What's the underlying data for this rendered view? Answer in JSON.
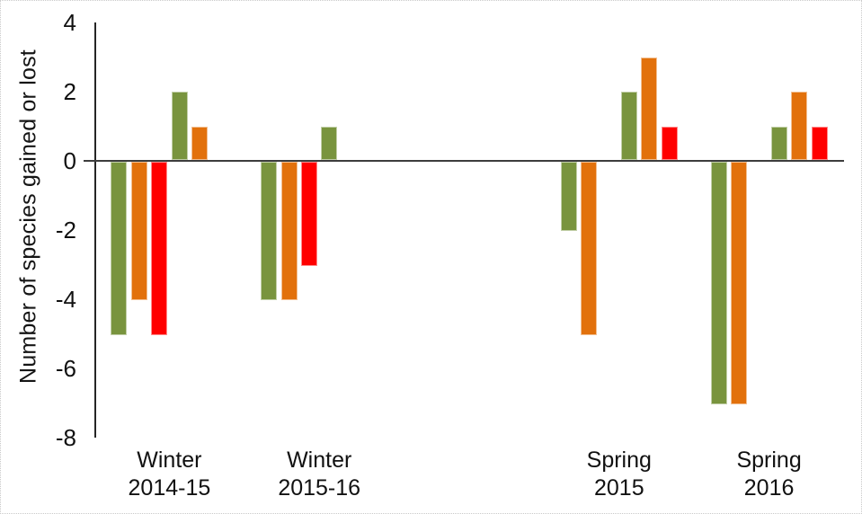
{
  "chart_data": {
    "type": "bar",
    "title": "",
    "ylabel": "Number of species gained or lost",
    "xlabel": "",
    "ylim": [
      -8,
      4
    ],
    "yticks": [
      4,
      2,
      0,
      -2,
      -4,
      -6,
      -8
    ],
    "grid": "off",
    "legend": "none",
    "categories": [
      {
        "line1": "Winter",
        "line2": "2014-15"
      },
      {
        "line1": "Winter",
        "line2": "2015-16"
      },
      {
        "line1": "",
        "line2": ""
      },
      {
        "line1": "Spring",
        "line2": "2015"
      },
      {
        "line1": "Spring",
        "line2": "2016"
      }
    ],
    "colors": {
      "green": "#79943E",
      "orange": "#E2710C",
      "red": "#FF0000"
    },
    "series": [
      {
        "name": "lost-green",
        "color": "green",
        "values": [
          -5,
          -4,
          null,
          -2,
          -7
        ]
      },
      {
        "name": "lost-orange",
        "color": "orange",
        "values": [
          -4,
          -4,
          null,
          -5,
          -7
        ]
      },
      {
        "name": "lost-red",
        "color": "red",
        "values": [
          -5,
          -3,
          null,
          null,
          null
        ]
      },
      {
        "name": "gained-green",
        "color": "green",
        "values": [
          2,
          1,
          null,
          2,
          1
        ]
      },
      {
        "name": "gained-orange",
        "color": "orange",
        "values": [
          1,
          null,
          null,
          3,
          2
        ]
      },
      {
        "name": "gained-red",
        "color": "red",
        "values": [
          null,
          null,
          null,
          1,
          1
        ]
      }
    ]
  }
}
